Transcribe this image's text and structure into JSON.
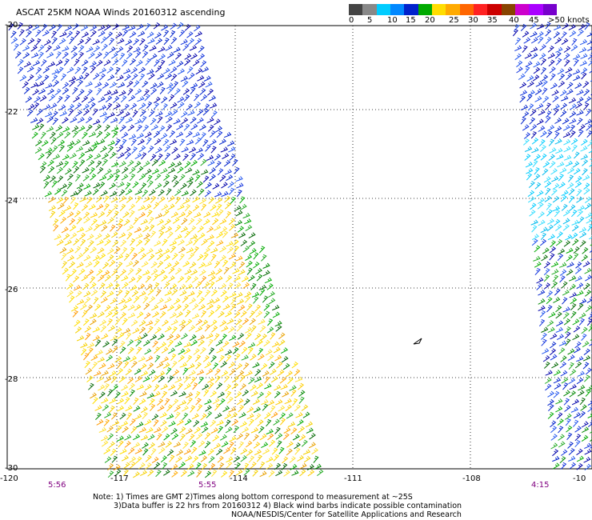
{
  "title": "ASCAT 25KM NOAA Winds 20160312 ascending",
  "legend": {
    "colors": [
      "#444444",
      "#888888",
      "#00ccff",
      "#0088ff",
      "#0022cc",
      "#00aa00",
      "#ffdd00",
      "#ffaa00",
      "#ff6600",
      "#ff2222",
      "#cc0000",
      "#884400",
      "#cc00cc",
      "#aa00ff",
      "#7700cc"
    ],
    "labels": [
      "0",
      "5",
      "10",
      "15",
      "20",
      "25",
      "30",
      "35",
      "40",
      "45",
      ">50 knots"
    ]
  },
  "lat_labels": [
    "-20",
    "-22",
    "-24",
    "-26",
    "-28",
    "-30"
  ],
  "lon_labels": [
    "-120",
    "-117",
    "-114",
    "-111",
    "-108",
    "-10"
  ],
  "time_labels": [
    "5:56",
    "5:55",
    "4:15"
  ],
  "notes": [
    "Note: 1) Times are GMT 2)Times along bottom correspond to measurement at ~25S",
    "3)Data buffer is 22 hrs from 20160312 4) Black wind barbs indicate possible contamination",
    "NOAA/NESDIS/Center for Satellite Applications and Research"
  ]
}
